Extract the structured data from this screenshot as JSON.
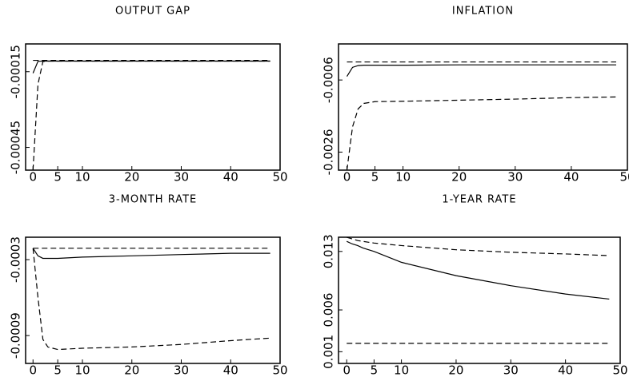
{
  "chart_data": [
    {
      "type": "line",
      "title": "OUTPUT GAP",
      "x": [
        0,
        1,
        2,
        3,
        5,
        10,
        20,
        30,
        40,
        48
      ],
      "xlim": [
        -1.5,
        50
      ],
      "xticks": [
        0,
        5,
        10,
        20,
        30,
        40,
        50
      ],
      "ylim": [
        -0.00054,
        -4e-05
      ],
      "yticks": [
        -0.00015,
        -0.00045
      ],
      "series": [
        {
          "color": "#000000",
          "style": "solid",
          "values": [
            -0.000156,
            -0.000109,
            -0.000108,
            -0.000108,
            -0.000108,
            -0.000108,
            -0.000108,
            -0.000108,
            -0.000108,
            -0.000108
          ]
        },
        {
          "color": "#000000",
          "style": "dashed",
          "values": [
            -0.00054,
            -0.0002,
            -0.00011,
            -0.000108,
            -0.000108,
            -0.000108,
            -0.000108,
            -0.000108,
            -0.000108,
            -0.000108
          ]
        },
        {
          "color": "#000000",
          "style": "dashed",
          "values": [
            -0.000105,
            -0.000105,
            -0.000105,
            -0.000105,
            -0.000105,
            -0.000105,
            -0.000105,
            -0.000105,
            -0.000105,
            -0.000105
          ]
        }
      ]
    },
    {
      "type": "line",
      "title": "INFLATION",
      "x": [
        0,
        1,
        2,
        3,
        5,
        10,
        20,
        30,
        40,
        48
      ],
      "xlim": [
        -1.5,
        50
      ],
      "xticks": [
        0,
        5,
        10,
        20,
        30,
        40,
        50
      ],
      "ylim": [
        -0.0031,
        0.0004
      ],
      "yticks": [
        -0.0006,
        -0.0026
      ],
      "series": [
        {
          "color": "#000000",
          "style": "solid",
          "values": [
            -0.0005,
            -0.00025,
            -0.0002,
            -0.00019,
            -0.00019,
            -0.00019,
            -0.00018,
            -0.00018,
            -0.00018,
            -0.00018
          ]
        },
        {
          "color": "#000000",
          "style": "dashed",
          "values": [
            -0.0031,
            -0.0019,
            -0.0014,
            -0.00125,
            -0.0012,
            -0.00119,
            -0.00116,
            -0.00113,
            -0.00109,
            -0.00107
          ]
        },
        {
          "color": "#000000",
          "style": "dashed",
          "values": [
            -0.0001,
            -0.0001,
            -0.0001,
            -0.0001,
            -0.0001,
            -0.0001,
            -0.0001,
            -0.0001,
            -0.0001,
            -0.0001
          ]
        }
      ]
    },
    {
      "type": "line",
      "title": "3-MONTH RATE",
      "x": [
        0,
        1,
        2,
        3,
        5,
        10,
        20,
        30,
        40,
        48
      ],
      "xlim": [
        -1.5,
        50
      ],
      "xticks": [
        0,
        5,
        10,
        20,
        30,
        40,
        50
      ],
      "ylim": [
        -0.00112,
        -0.000123
      ],
      "yticks": [
        -0.0003,
        -0.0009
      ],
      "series": [
        {
          "color": "#000000",
          "style": "solid",
          "values": [
            -0.00021,
            -0.00027,
            -0.00029,
            -0.00029,
            -0.00029,
            -0.00028,
            -0.00027,
            -0.00026,
            -0.00025,
            -0.00025
          ]
        },
        {
          "color": "#000000",
          "style": "dashed",
          "values": [
            -0.00021,
            -0.0006,
            -0.00093,
            -0.00099,
            -0.00101,
            -0.001,
            -0.00099,
            -0.00097,
            -0.00094,
            -0.00092
          ]
        },
        {
          "color": "#000000",
          "style": "dashed",
          "values": [
            -0.00021,
            -0.00021,
            -0.00021,
            -0.00021,
            -0.00021,
            -0.00021,
            -0.00021,
            -0.00021,
            -0.00021,
            -0.00021
          ]
        }
      ]
    },
    {
      "type": "line",
      "title": "1-YEAR RATE",
      "x": [
        0,
        1,
        2,
        3,
        5,
        10,
        20,
        30,
        40,
        48
      ],
      "xlim": [
        -1.5,
        50
      ],
      "xticks": [
        0,
        5,
        10,
        20,
        30,
        40,
        50
      ],
      "ylim": [
        -0.0004,
        0.0147
      ],
      "yticks": [
        0.013,
        0.006,
        0.001
      ],
      "series": [
        {
          "color": "#000000",
          "style": "solid",
          "values": [
            0.0142,
            0.0139,
            0.0137,
            0.0134,
            0.013,
            0.0117,
            0.0101,
            0.0089,
            0.0079,
            0.0073
          ]
        },
        {
          "color": "#000000",
          "style": "dashed",
          "values": [
            0.0147,
            0.0145,
            0.0143,
            0.0142,
            0.014,
            0.0137,
            0.0132,
            0.0129,
            0.0127,
            0.0125
          ]
        },
        {
          "color": "#000000",
          "style": "dashed",
          "values": [
            0.002,
            0.002,
            0.002,
            0.002,
            0.002,
            0.002,
            0.002,
            0.002,
            0.002,
            0.002
          ]
        }
      ]
    }
  ]
}
